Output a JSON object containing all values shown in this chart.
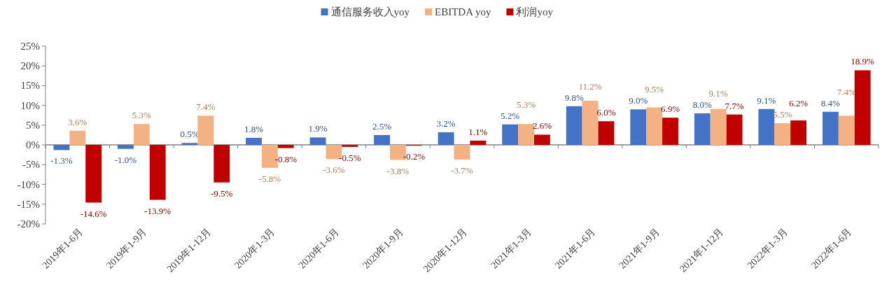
{
  "chart_data": {
    "type": "bar",
    "categories": [
      "2019年1-6月",
      "2019年1-9月",
      "2019年1-12月",
      "2020年1-3月",
      "2020年1-6月",
      "2020年1-9月",
      "2020年1-12月",
      "2021年1-3月",
      "2021年1-6月",
      "2021年1-9月",
      "2021年1-12月",
      "2022年1-3月",
      "2022年1-6月"
    ],
    "series": [
      {
        "name": "通信服务收入yoy",
        "color": "#4472c4",
        "values": [
          -1.3,
          -1.0,
          0.5,
          1.8,
          1.9,
          2.5,
          3.2,
          5.2,
          9.8,
          9.0,
          8.0,
          9.1,
          8.4
        ],
        "value_labels": [
          "-1.3%",
          "-1.0%",
          "0.5%",
          "1.8%",
          "1.9%",
          "2.5%",
          "3.2%",
          "5.2%",
          "9.8%",
          "9.0%",
          "8.0%",
          "9.1%",
          "8.4%"
        ]
      },
      {
        "name": "EBITDA yoy",
        "color": "#f4b183",
        "values": [
          3.6,
          5.3,
          7.4,
          -5.8,
          -3.6,
          -3.8,
          -3.7,
          5.3,
          11.2,
          9.5,
          9.1,
          5.5,
          7.4
        ],
        "value_labels": [
          "3.6%",
          "5.3%",
          "7.4%",
          "-5.8%",
          "-3.6%",
          "-3.8%",
          "-3.7%",
          "5.3%",
          "11.2%",
          "9.5%",
          "9.1%",
          "5.5%",
          "7.4%"
        ]
      },
      {
        "name": "利润yoy",
        "color": "#c00000",
        "values": [
          -14.6,
          -13.9,
          -9.5,
          -0.8,
          -0.5,
          -0.2,
          1.1,
          2.6,
          6.0,
          6.9,
          7.7,
          6.2,
          18.9
        ],
        "value_labels": [
          "-14.6%",
          "-13.9%",
          "-9.5%",
          "-0.8%",
          "-0.5%",
          "-0.2%",
          "1.1%",
          "2.6%",
          "6.0%",
          "6.9%",
          "7.7%",
          "6.2%",
          "18.9%"
        ]
      }
    ],
    "ylim": [
      -20,
      25
    ],
    "yticks": [
      {
        "value": -20,
        "label": "-20%"
      },
      {
        "value": -15,
        "label": "-15%"
      },
      {
        "value": -10,
        "label": "-10%"
      },
      {
        "value": -5,
        "label": "-5%"
      },
      {
        "value": 0,
        "label": "0%"
      },
      {
        "value": 5,
        "label": "5%"
      },
      {
        "value": 10,
        "label": "10%"
      },
      {
        "value": 15,
        "label": "15%"
      },
      {
        "value": 20,
        "label": "20%"
      },
      {
        "value": 25,
        "label": "25%"
      }
    ],
    "legend": "top"
  }
}
